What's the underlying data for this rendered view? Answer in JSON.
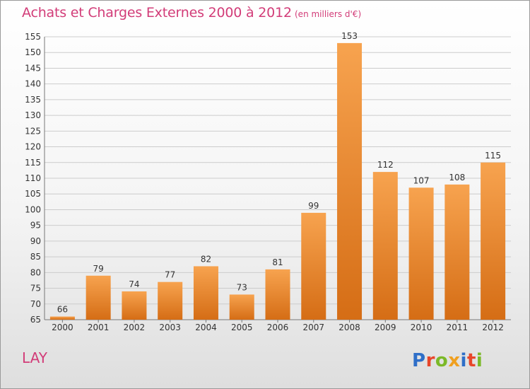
{
  "header": {
    "title": "Achats et Charges Externes 2000 à 2012",
    "subtitle": "(en milliers d'€)"
  },
  "footer": {
    "commune": "LAY",
    "brand": "Proxiti"
  },
  "colors": {
    "accent": "#d23c78",
    "bar_top": "#f7a34f",
    "bar_bottom": "#d56d15",
    "grid": "#cccccc"
  },
  "chart_data": {
    "type": "bar",
    "title": "Achats et Charges Externes 2000 à 2012",
    "subtitle": "(en milliers d'€)",
    "categories": [
      "2000",
      "2001",
      "2002",
      "2003",
      "2004",
      "2005",
      "2006",
      "2007",
      "2008",
      "2009",
      "2010",
      "2011",
      "2012"
    ],
    "values": [
      66,
      79,
      74,
      77,
      82,
      73,
      81,
      99,
      153,
      112,
      107,
      108,
      115
    ],
    "data_labels": [
      "66",
      "79",
      "74",
      "77",
      "82",
      "73",
      "81",
      "99",
      "153",
      "112",
      "107",
      "108",
      "115"
    ],
    "ylim": [
      65,
      155
    ],
    "yticks": [
      65,
      70,
      75,
      80,
      85,
      90,
      95,
      100,
      105,
      110,
      115,
      120,
      125,
      130,
      135,
      140,
      145,
      150,
      155
    ],
    "ytick_labels": [
      "65",
      "70",
      "75",
      "80",
      "85",
      "90",
      "95",
      "100",
      "105",
      "110",
      "115",
      "120",
      "125",
      "130",
      "135",
      "140",
      "145",
      "150",
      "155"
    ],
    "xlabel": "",
    "ylabel": "",
    "grid": true
  }
}
